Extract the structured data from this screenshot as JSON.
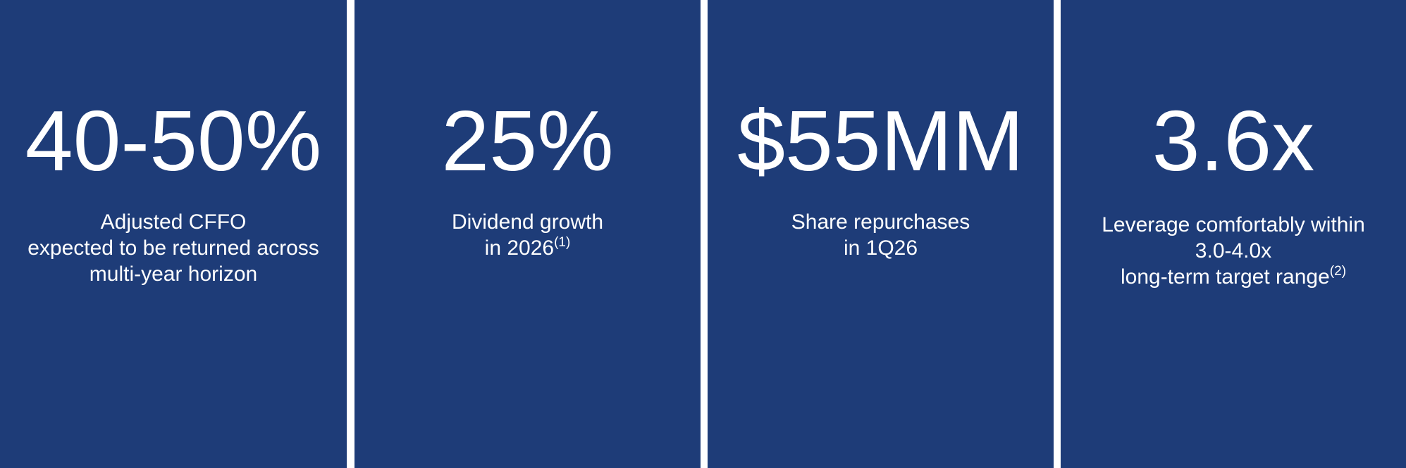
{
  "panels": [
    {
      "headline": "40-50%",
      "description": [
        "Adjusted CFFO",
        "expected to be returned across",
        "multi-year horizon"
      ]
    },
    {
      "headline": "25%",
      "description": [
        "Dividend growth",
        "in 2026"
      ],
      "footnote": "(1)"
    },
    {
      "headline": "$55MM",
      "description": [
        "Share repurchases",
        "in 1Q26"
      ]
    },
    {
      "headline": "3.6x",
      "description": [
        "Leverage comfortably within",
        "3.0-4.0x",
        "long-term target range"
      ],
      "footnote": "(2)"
    }
  ]
}
